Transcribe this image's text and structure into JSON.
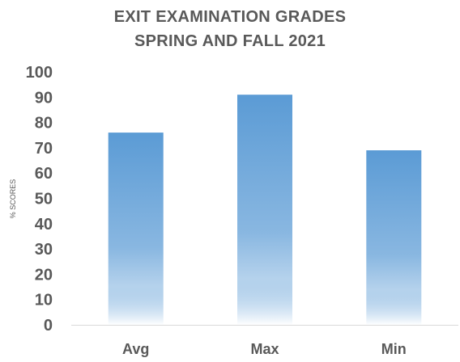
{
  "chart_data": {
    "type": "bar",
    "title": [
      "EXIT EXAMINATION GRADES",
      "SPRING AND FALL 2021"
    ],
    "xlabel": "",
    "ylabel": "% SCORES",
    "categories": [
      "Avg",
      "Max",
      "Min"
    ],
    "values": [
      76,
      91,
      69
    ],
    "ylim": [
      0,
      100
    ],
    "yticks": [
      "0",
      "10",
      "20",
      "30",
      "40",
      "50",
      "60",
      "70",
      "80",
      "90",
      "100"
    ],
    "grid": false,
    "legend": "none",
    "bar_color": "#5b9bd5",
    "bar_fade_color": "#ffffff"
  }
}
